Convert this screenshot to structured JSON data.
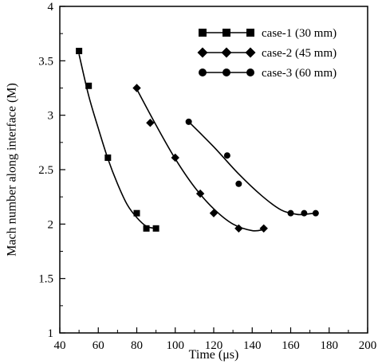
{
  "chart_data": {
    "type": "scatter",
    "title": "",
    "xlabel": "Time (μs)",
    "ylabel": "Mach number along interface (M)",
    "xlim": [
      40,
      200
    ],
    "ylim": [
      1,
      4
    ],
    "x_ticks": [
      "40",
      "60",
      "80",
      "100",
      "120",
      "140",
      "160",
      "180",
      "200"
    ],
    "y_ticks": [
      "1",
      "1.5",
      "2",
      "2.5",
      "3",
      "3.5",
      "4"
    ],
    "grid": false,
    "legend_position": "top-right",
    "series": [
      {
        "name": "case-1 (30 mm)",
        "marker": "square",
        "points": [
          [
            50,
            3.59
          ],
          [
            55,
            3.27
          ],
          [
            65,
            2.61
          ],
          [
            80,
            2.1
          ],
          [
            85,
            1.96
          ],
          [
            90,
            1.96
          ]
        ],
        "fit": [
          [
            50,
            3.56
          ],
          [
            55,
            3.18
          ],
          [
            60,
            2.88
          ],
          [
            65,
            2.6
          ],
          [
            70,
            2.37
          ],
          [
            75,
            2.18
          ],
          [
            80,
            2.06
          ],
          [
            85,
            1.98
          ],
          [
            90,
            1.96
          ]
        ]
      },
      {
        "name": "case-2 (45 mm)",
        "marker": "diamond",
        "points": [
          [
            80,
            3.25
          ],
          [
            87,
            2.93
          ],
          [
            100,
            2.61
          ],
          [
            113,
            2.28
          ],
          [
            120,
            2.1
          ],
          [
            133,
            1.96
          ],
          [
            146,
            1.96
          ]
        ],
        "fit": [
          [
            80,
            3.24
          ],
          [
            90,
            2.91
          ],
          [
            100,
            2.6
          ],
          [
            110,
            2.34
          ],
          [
            120,
            2.14
          ],
          [
            130,
            2.0
          ],
          [
            140,
            1.94
          ],
          [
            146,
            1.95
          ]
        ]
      },
      {
        "name": "case-3 (60 mm)",
        "marker": "circle",
        "points": [
          [
            107,
            2.94
          ],
          [
            127,
            2.63
          ],
          [
            133,
            2.37
          ],
          [
            160,
            2.1
          ],
          [
            167,
            2.1
          ],
          [
            173,
            2.1
          ]
        ],
        "fit": [
          [
            107,
            2.94
          ],
          [
            120,
            2.71
          ],
          [
            133,
            2.46
          ],
          [
            145,
            2.26
          ],
          [
            155,
            2.13
          ],
          [
            163,
            2.09
          ],
          [
            167,
            2.09
          ],
          [
            173,
            2.1
          ]
        ]
      }
    ]
  }
}
